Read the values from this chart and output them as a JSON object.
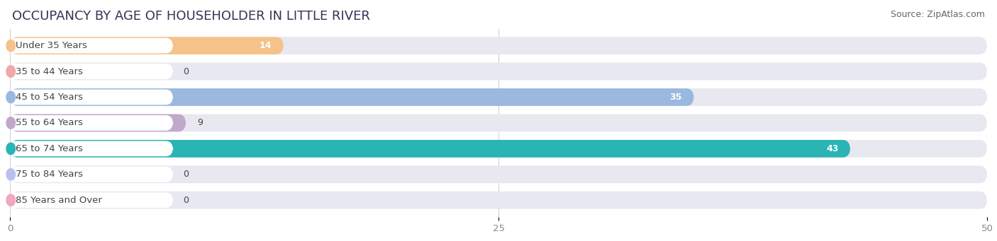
{
  "title": "OCCUPANCY BY AGE OF HOUSEHOLDER IN LITTLE RIVER",
  "source": "Source: ZipAtlas.com",
  "categories": [
    "Under 35 Years",
    "35 to 44 Years",
    "45 to 54 Years",
    "55 to 64 Years",
    "65 to 74 Years",
    "75 to 84 Years",
    "85 Years and Over"
  ],
  "values": [
    14,
    0,
    35,
    9,
    43,
    0,
    0
  ],
  "bar_colors": [
    "#f5c28a",
    "#f0a8a8",
    "#9ab8e0",
    "#c0a8cc",
    "#2ab4b4",
    "#b8c0f0",
    "#f0a8c0"
  ],
  "bar_bg_color": "#e8e8f0",
  "xlim": [
    0,
    50
  ],
  "xticks": [
    0,
    25,
    50
  ],
  "title_fontsize": 13,
  "source_fontsize": 9,
  "label_fontsize": 9.5,
  "value_fontsize": 9,
  "bar_height": 0.68,
  "fig_bg_color": "#ffffff",
  "label_pill_color": "#ffffff",
  "label_text_color": "#444444",
  "grid_color": "#d0d0d8",
  "tick_color": "#888888"
}
